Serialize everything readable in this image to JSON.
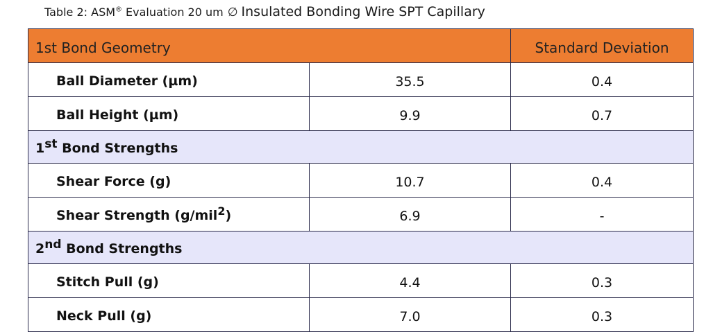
{
  "caption": {
    "prefix": "Table 2: ASM",
    "registered_mark": "®",
    "middle": "Evaluation 20 um",
    "diameter_symbol": "∅",
    "title": "Insulated Bonding Wire SPT Capillary"
  },
  "header": {
    "col1": "1st Bond Geometry",
    "col3": "Standard Deviation"
  },
  "rows": [
    {
      "label": "Ball Diameter (µm)",
      "value": "35.5",
      "stdev": "0.4"
    },
    {
      "label": "Ball Height (µm)",
      "value": "9.9",
      "stdev": "0.7"
    }
  ],
  "section1": {
    "ordinal": "1",
    "suffix": "st",
    "label": " Bond Strengths"
  },
  "rows_s1": [
    {
      "label": "Shear Force (g)",
      "value": "10.7",
      "stdev": "0.4"
    },
    {
      "label": "Shear Strength (g/mil",
      "label_sup": "2",
      "label_end": ")",
      "value": "6.9",
      "stdev": "-"
    }
  ],
  "section2": {
    "ordinal": "2",
    "suffix": "nd",
    "label": " Bond Strengths"
  },
  "rows_s2": [
    {
      "label": "Stitch Pull (g)",
      "value": "4.4",
      "stdev": "0.3"
    },
    {
      "label": "Neck Pull (g)",
      "value": "7.0",
      "stdev": "0.3"
    }
  ],
  "colors": {
    "header_bg": "#ed7d31",
    "section_bg": "#e6e6fa",
    "border": "#2a2a4a"
  }
}
